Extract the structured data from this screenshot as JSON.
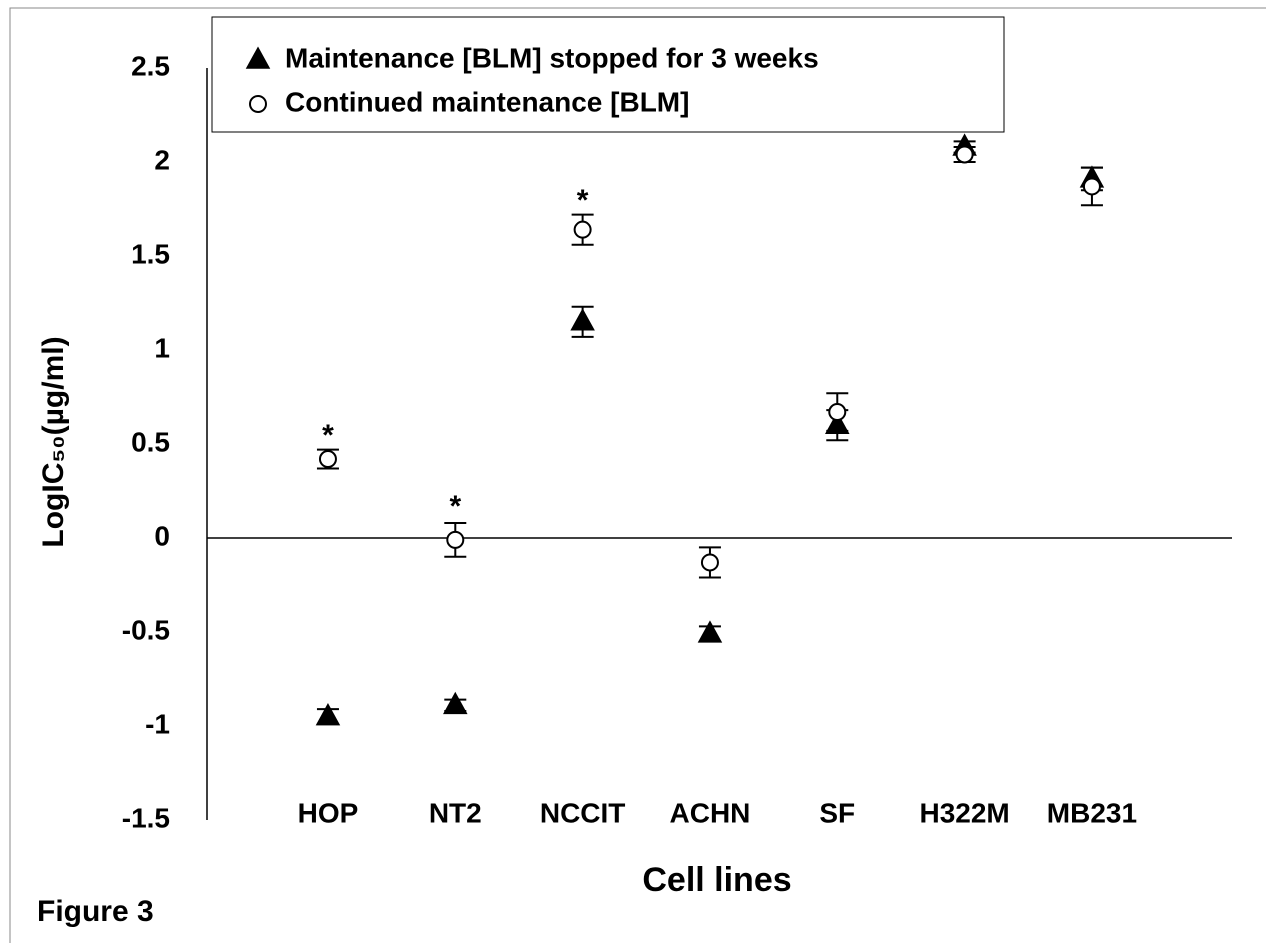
{
  "chart_data": {
    "type": "scatter",
    "caption": "Figure 3",
    "xlabel": "Cell lines",
    "ylabel": "LogIC₅₀(µg/ml)",
    "categories": [
      "HOP",
      "NT2",
      "NCCIT",
      "ACHN",
      "SF",
      "H322M",
      "MB231"
    ],
    "series": [
      {
        "name": "Maintenance [BLM] stopped for 3 weeks",
        "marker": "triangle",
        "color": "#000000",
        "values": [
          -0.95,
          -0.89,
          1.15,
          -0.51,
          0.6,
          2.08,
          1.91
        ],
        "errors": [
          0.04,
          0.03,
          0.08,
          0.04,
          0.08,
          0.03,
          0.06
        ]
      },
      {
        "name": "Continued maintenance [BLM]",
        "marker": "circle",
        "color": "#ffffff",
        "values": [
          0.42,
          -0.01,
          1.64,
          -0.13,
          0.67,
          2.04,
          1.87
        ],
        "errors": [
          0.05,
          0.09,
          0.08,
          0.08,
          0.1,
          0.04,
          0.1
        ]
      }
    ],
    "annotations": [
      {
        "text": "*",
        "x": "HOP",
        "y": 0.57
      },
      {
        "text": "*",
        "x": "NT2",
        "y": 0.19
      },
      {
        "text": "*",
        "x": "NCCIT",
        "y": 1.82
      }
    ],
    "ylim": [
      -1.5,
      2.5
    ],
    "yticks": [
      -1.5,
      -1,
      -0.5,
      0,
      0.5,
      1,
      1.5,
      2,
      2.5
    ],
    "grid": false,
    "legend": "top-left"
  }
}
